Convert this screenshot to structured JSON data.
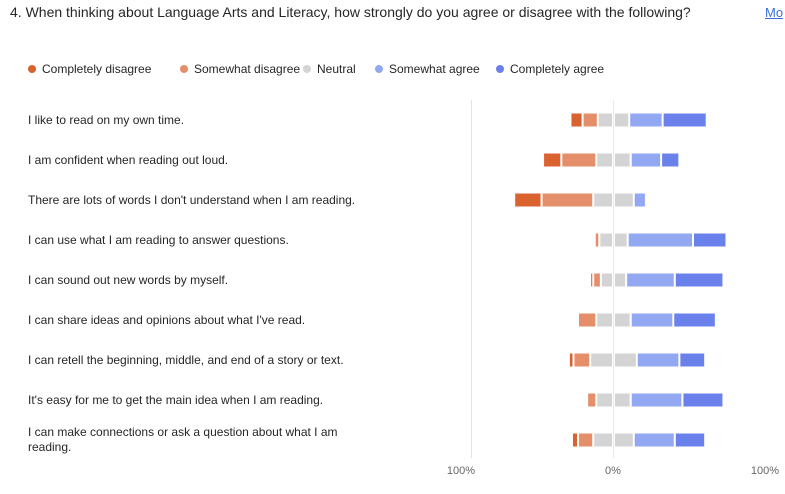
{
  "question": {
    "text": "4. When thinking about Language Arts and Literacy, how strongly do you agree or disagree with the following?",
    "more_link": "Mo"
  },
  "legend": {
    "items": [
      {
        "label": "Completely disagree",
        "color": "#d9622f"
      },
      {
        "label": "Somewhat disagree",
        "color": "#e58f6a"
      },
      {
        "label": "Neutral",
        "color": "#d4d4d4"
      },
      {
        "label": "Somewhat agree",
        "color": "#93a8f2"
      },
      {
        "label": "Completely agree",
        "color": "#6a80ea"
      }
    ]
  },
  "chart_data": {
    "type": "bar",
    "orientation": "horizontal",
    "layout": "diverging-stacked",
    "categories": [
      "I like to read on my own time.",
      "I am confident when reading out loud.",
      "There are lots of words I don't understand when I am reading.",
      "I can use what I am reading to answer questions.",
      "I can sound out new words by myself.",
      "I can share ideas and opinions about what I've read.",
      "I can retell the beginning, middle, and end of a story or text.",
      "It's easy for me to get the main idea when I am reading.",
      "I can make connections or ask a question about what I am reading."
    ],
    "series": [
      {
        "name": "Completely disagree",
        "color": "#d9622f",
        "values": [
          8,
          12,
          18,
          1,
          2,
          1,
          3,
          1,
          4
        ]
      },
      {
        "name": "Somewhat disagree",
        "color": "#e58f6a",
        "values": [
          10,
          23,
          34,
          3,
          5,
          12,
          11,
          6,
          10
        ]
      },
      {
        "name": "Neutral",
        "color": "#d4d4d4",
        "values": [
          20,
          22,
          26,
          18,
          16,
          22,
          30,
          22,
          26
        ]
      },
      {
        "name": "Somewhat agree",
        "color": "#93a8f2",
        "values": [
          22,
          20,
          8,
          43,
          32,
          28,
          28,
          34,
          27
        ]
      },
      {
        "name": "Completely agree",
        "color": "#6a80ea",
        "values": [
          29,
          12,
          1,
          22,
          32,
          28,
          17,
          27,
          20
        ]
      }
    ],
    "xlim": [
      -100,
      100
    ],
    "x_ticks": [
      {
        "value": -100,
        "label": "100%"
      },
      {
        "value": 0,
        "label": "0%"
      },
      {
        "value": 100,
        "label": "100%"
      }
    ],
    "grid": false,
    "legend_position": "top-left"
  }
}
